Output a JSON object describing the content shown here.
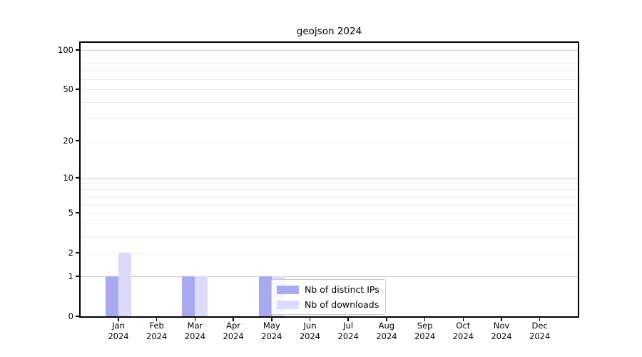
{
  "chart_data": {
    "type": "bar",
    "title": "geojson 2024",
    "categories": [
      {
        "month": "Jan",
        "year": "2024"
      },
      {
        "month": "Feb",
        "year": "2024"
      },
      {
        "month": "Mar",
        "year": "2024"
      },
      {
        "month": "Apr",
        "year": "2024"
      },
      {
        "month": "May",
        "year": "2024"
      },
      {
        "month": "Jun",
        "year": "2024"
      },
      {
        "month": "Jul",
        "year": "2024"
      },
      {
        "month": "Aug",
        "year": "2024"
      },
      {
        "month": "Sep",
        "year": "2024"
      },
      {
        "month": "Oct",
        "year": "2024"
      },
      {
        "month": "Nov",
        "year": "2024"
      },
      {
        "month": "Dec",
        "year": "2024"
      }
    ],
    "series": [
      {
        "key": "distinct-ips",
        "name": "Nb of distinct IPs",
        "color": "#a9a9ef",
        "values": [
          1,
          0,
          1,
          0,
          1,
          0,
          0,
          0,
          0,
          0,
          0,
          0
        ]
      },
      {
        "key": "downloads",
        "name": "Nb of downloads",
        "color": "#dcdcf8",
        "values": [
          2,
          0,
          1,
          0,
          1,
          0,
          0,
          0,
          0,
          0,
          0,
          0
        ]
      }
    ],
    "yscale": "log1p",
    "ylim": [
      0,
      113
    ],
    "yticks": [
      0,
      1,
      2,
      5,
      10,
      20,
      50,
      100
    ],
    "major_gridlines": [
      1,
      10,
      100
    ],
    "minor_gridlines": [
      2,
      3,
      4,
      5,
      6,
      7,
      8,
      9,
      20,
      30,
      40,
      50,
      60,
      70,
      80,
      90
    ],
    "grid": true,
    "legend_position": "lower center"
  },
  "colors": {
    "distinct_ips": "#a9a9ef",
    "downloads": "#dcdcf8",
    "major_grid": "#c8c8c8",
    "minor_grid": "#ececec",
    "axis": "#000000",
    "background": "#ffffff",
    "legend_border": "#cccccc",
    "text": "#000000"
  }
}
